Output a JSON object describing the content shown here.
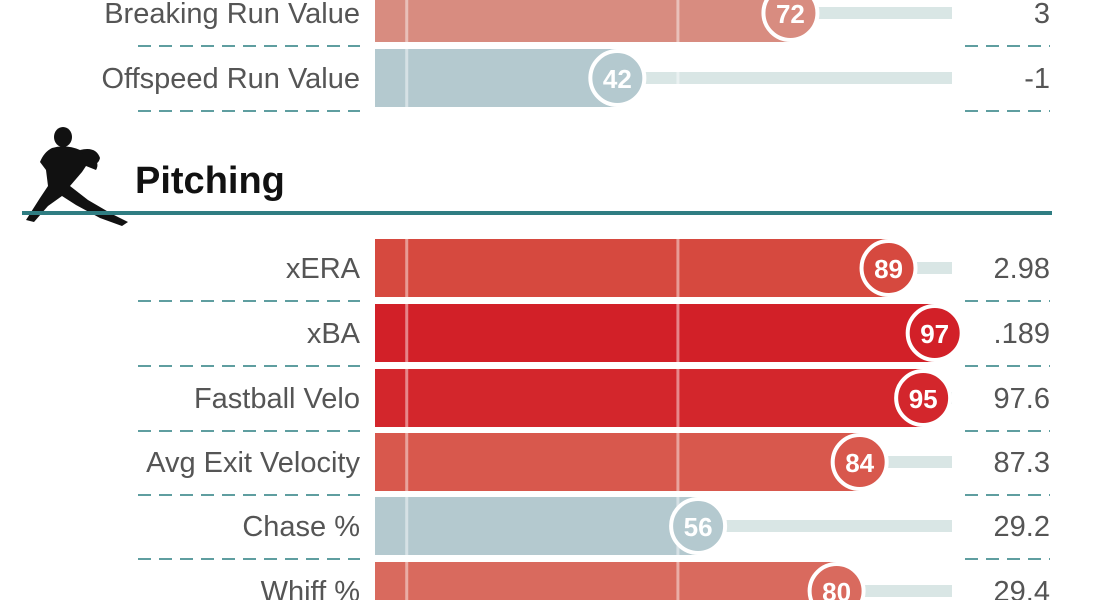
{
  "chart_data": {
    "type": "bar",
    "title": "",
    "percentile_range": [
      0,
      100
    ],
    "sections": [
      {
        "name": "",
        "icon": "",
        "metrics": [
          {
            "label": "Breaking Run Value",
            "percentile": 72,
            "value": "3",
            "color": "#d88c80"
          },
          {
            "label": "Offspeed Run Value",
            "percentile": 42,
            "value": "-1",
            "color": "#b4c9cf"
          }
        ]
      },
      {
        "name": "Pitching",
        "icon": "pitcher-silhouette-icon",
        "metrics": [
          {
            "label": "xERA",
            "percentile": 89,
            "value": "2.98",
            "color": "#d6493f"
          },
          {
            "label": "xBA",
            "percentile": 97,
            "value": ".189",
            "color": "#d22028"
          },
          {
            "label": "Fastball Velo",
            "percentile": 95,
            "value": "97.6",
            "color": "#d3262c"
          },
          {
            "label": "Avg Exit Velocity",
            "percentile": 84,
            "value": "87.3",
            "color": "#d8584d"
          },
          {
            "label": "Chase %",
            "percentile": 56,
            "value": "29.2",
            "color": "#b4c9cf"
          },
          {
            "label": "Whiff %",
            "percentile": 80,
            "value": "29.4",
            "color": "#d96a5e"
          }
        ]
      }
    ]
  },
  "colors": {
    "section_rule": "#2f7d82",
    "divider_dash": "#5f9ea0",
    "track": "#d9e6e5",
    "text": "#555555"
  }
}
